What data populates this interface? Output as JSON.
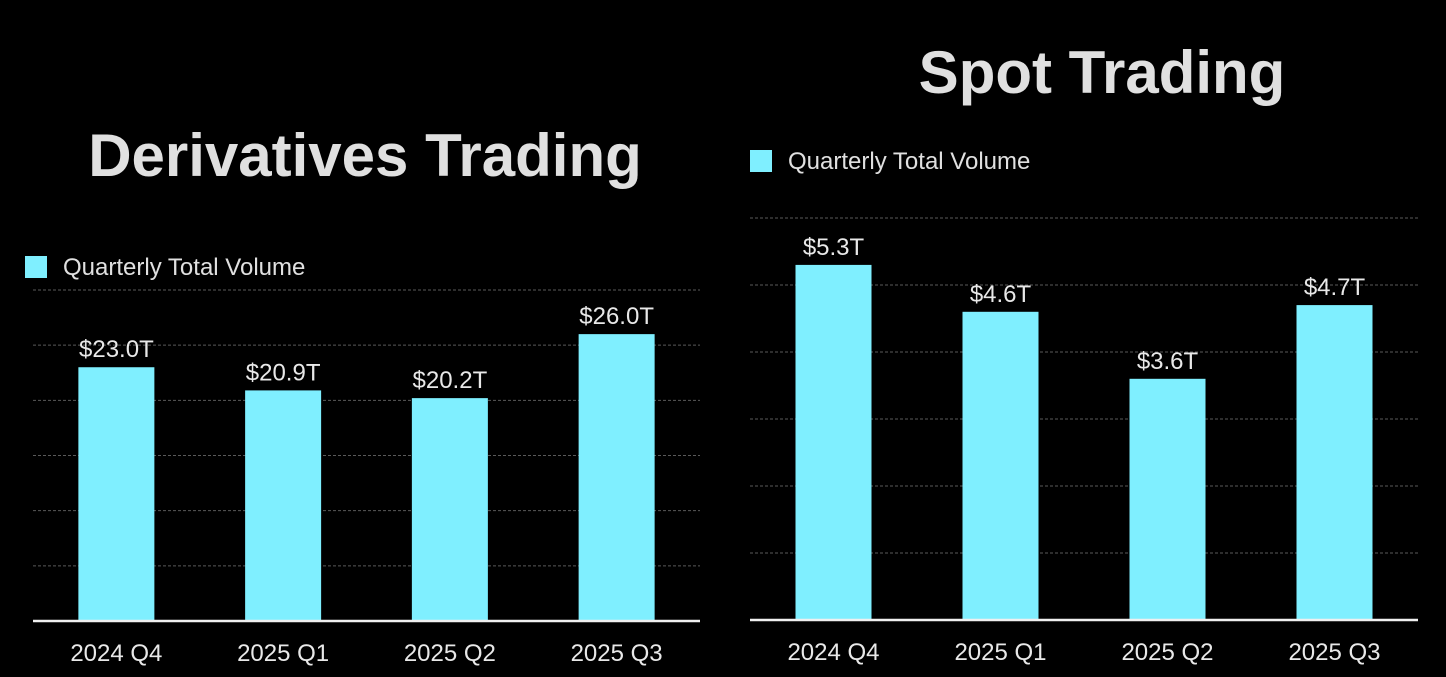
{
  "chart_data": [
    {
      "type": "bar",
      "title": "Derivatives Trading",
      "categories": [
        "2024 Q4",
        "2025 Q1",
        "2025 Q2",
        "2025 Q3"
      ],
      "series": [
        {
          "name": "Quarterly Total Volume",
          "values": [
            23.0,
            20.9,
            20.2,
            26.0
          ]
        }
      ],
      "data_labels": [
        "$23.0T",
        "$20.9T",
        "$20.2T",
        "$26.0T"
      ],
      "ylim": [
        0,
        30
      ],
      "grid_step": 5,
      "grid": true,
      "legend": "top-left",
      "color": "#7fefff"
    },
    {
      "type": "bar",
      "title": "Spot Trading",
      "categories": [
        "2024 Q4",
        "2025 Q1",
        "2025 Q2",
        "2025 Q3"
      ],
      "series": [
        {
          "name": "Quarterly Total Volume",
          "values": [
            5.3,
            4.6,
            3.6,
            4.7
          ]
        }
      ],
      "data_labels": [
        "$5.3T",
        "$4.6T",
        "$3.6T",
        "$4.7T"
      ],
      "ylim": [
        0,
        6
      ],
      "grid_step": 1,
      "grid": true,
      "legend": "top-left",
      "color": "#7fefff"
    }
  ]
}
